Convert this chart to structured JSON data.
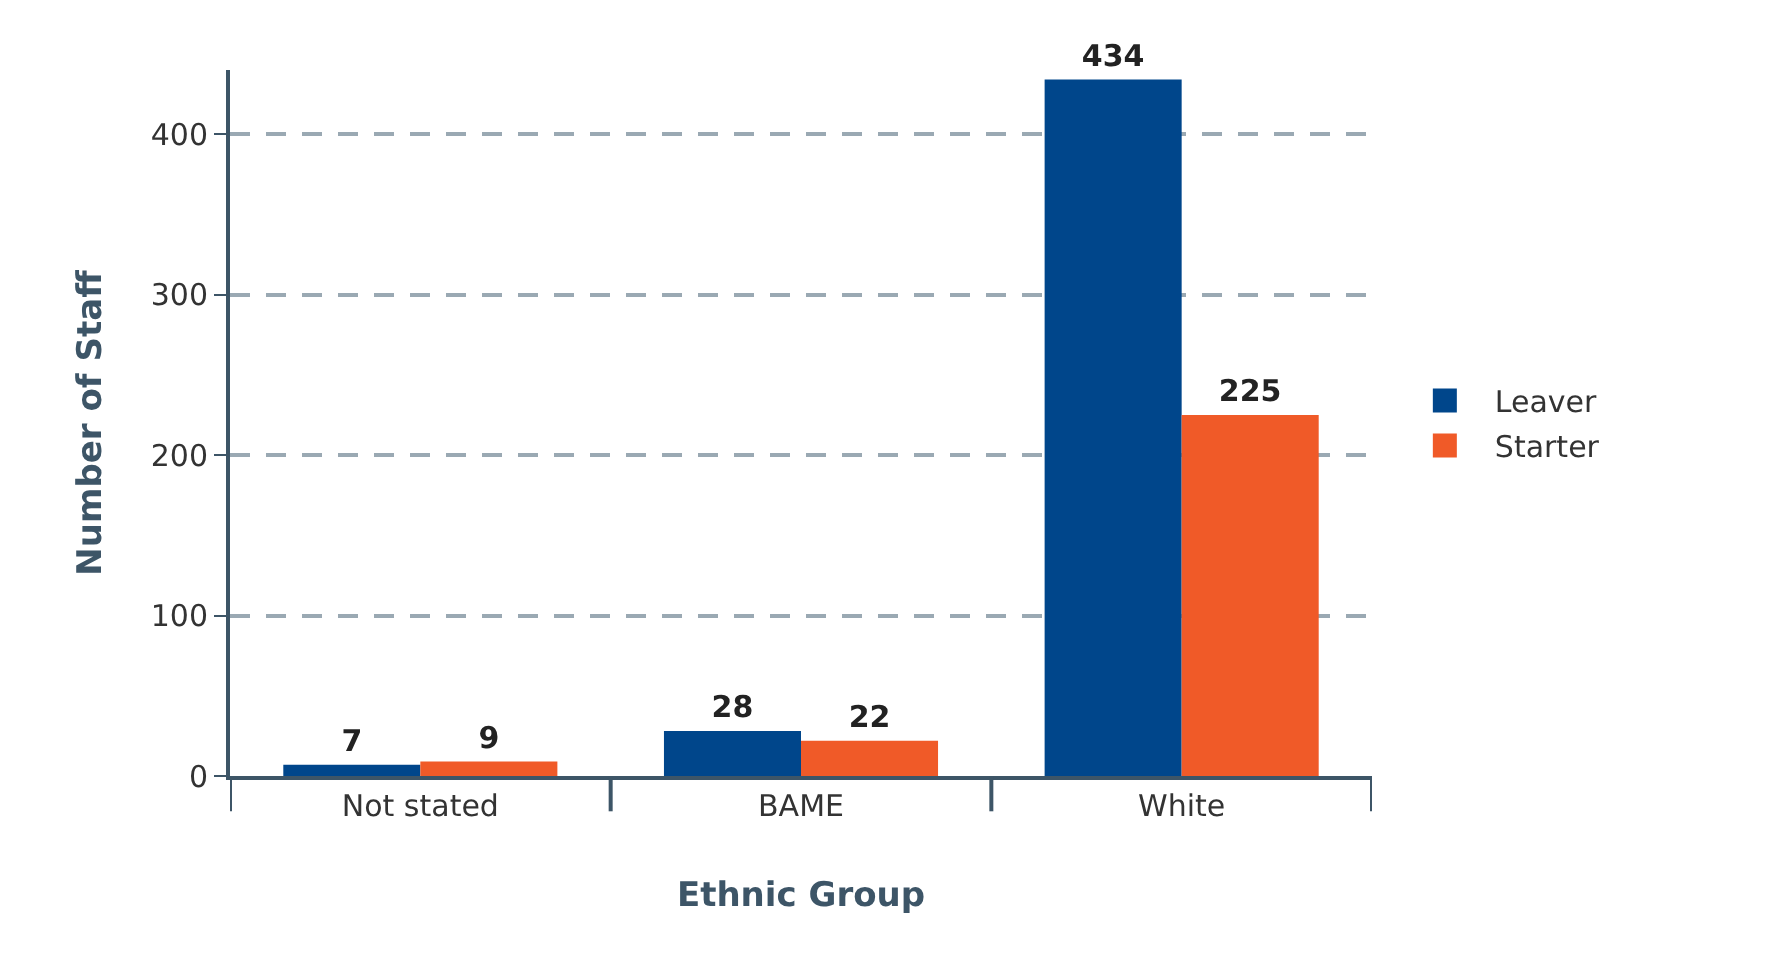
{
  "chart_data": {
    "type": "bar",
    "xlabel": "Ethnic Group",
    "ylabel": "Number of Staff",
    "categories": [
      "Not stated",
      "BAME",
      "White"
    ],
    "series": [
      {
        "name": "Leaver",
        "color": "#00468b",
        "values": [
          7,
          28,
          434
        ]
      },
      {
        "name": "Starter",
        "color": "#f05a28",
        "values": [
          9,
          22,
          225
        ]
      }
    ],
    "ylim": [
      0,
      440
    ],
    "yticks": [
      0,
      100,
      200,
      300,
      400
    ],
    "grid": "y",
    "legend": "right",
    "data_labels": true
  }
}
